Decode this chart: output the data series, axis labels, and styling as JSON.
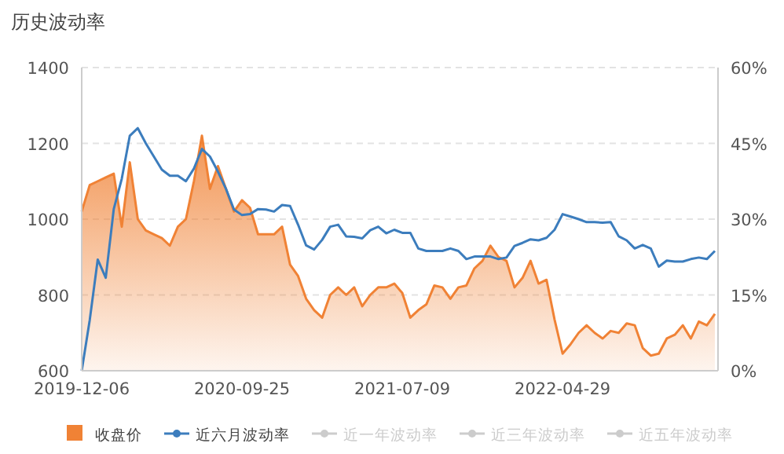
{
  "chart_data": {
    "type": "line",
    "title": "历史波动率",
    "categories": [
      "2019-12-06",
      null,
      null,
      null,
      null,
      null,
      null,
      null,
      null,
      null,
      null,
      null,
      null,
      null,
      null,
      null,
      null,
      null,
      null,
      null,
      "2020-09-25",
      null,
      null,
      null,
      null,
      null,
      null,
      null,
      null,
      null,
      null,
      null,
      null,
      null,
      null,
      null,
      null,
      null,
      null,
      null,
      "2021-07-09",
      null,
      null,
      null,
      null,
      null,
      null,
      null,
      null,
      null,
      null,
      null,
      null,
      null,
      null,
      null,
      null,
      null,
      null,
      null,
      "2022-04-29",
      null,
      null,
      null,
      null,
      null,
      null,
      null,
      null,
      null,
      null,
      null,
      null,
      null,
      null,
      null,
      null,
      null,
      null,
      null
    ],
    "series": [
      {
        "name": "收盘价",
        "type": "area",
        "color": "#f08235",
        "values": [
          1020,
          1090,
          1100,
          1110,
          1120,
          980,
          1150,
          1000,
          970,
          960,
          950,
          930,
          980,
          1000,
          1100,
          1220,
          1080,
          1140,
          1080,
          1020,
          1050,
          1030,
          960,
          960,
          960,
          980,
          880,
          850,
          790,
          760,
          740,
          800,
          820,
          800,
          820,
          770,
          800,
          820,
          820,
          830,
          805,
          740,
          760,
          775,
          825,
          820,
          790,
          820,
          825,
          870,
          890,
          930,
          900,
          890,
          820,
          845,
          890,
          830,
          840,
          735,
          645,
          670,
          700,
          720,
          700,
          685,
          705,
          700,
          725,
          720,
          660,
          640,
          645,
          685,
          695,
          720,
          685,
          730,
          720,
          750
        ]
      },
      {
        "name": "近六月波动率",
        "axis": "y2",
        "color": "#3c7dbd",
        "values": [
          0,
          10,
          22,
          18.4,
          32,
          38,
          46.5,
          48,
          45,
          42.4,
          39.8,
          38.6,
          38.6,
          37.5,
          40,
          43.9,
          42.4,
          39.4,
          36,
          31.9,
          30.8,
          31,
          32,
          31.9,
          31.5,
          32.8,
          32.6,
          28.9,
          24.8,
          24,
          25.9,
          28.5,
          28.9,
          26.6,
          26.5,
          26.2,
          27.8,
          28.5,
          27.2,
          27.9,
          27.3,
          27.3,
          24.2,
          23.7,
          23.7,
          23.7,
          24.2,
          23.7,
          22.1,
          22.6,
          22.6,
          22.6,
          22.1,
          22.4,
          24.7,
          25.3,
          26,
          25.8,
          26.3,
          27.9,
          31,
          30.5,
          30,
          29.4,
          29.4,
          29.3,
          29.4,
          26.6,
          25.8,
          24.2,
          24.9,
          24.2,
          20.6,
          21.8,
          21.6,
          21.6,
          22.1,
          22.4,
          22.1,
          23.7
        ]
      },
      {
        "name": "近一年波动率",
        "axis": "y2",
        "color": "#cccccc",
        "values": [
          null,
          null,
          null,
          null,
          null,
          null,
          null,
          null,
          null,
          null,
          null,
          null,
          null,
          null,
          null,
          null,
          null,
          null,
          null,
          null,
          null,
          null,
          null,
          null,
          null,
          null,
          null,
          null,
          null,
          null,
          null,
          null,
          null,
          null,
          null,
          null,
          null,
          null,
          null,
          null,
          null,
          null,
          null,
          null,
          null,
          null,
          null,
          null,
          null,
          null,
          null,
          null,
          null,
          null,
          null,
          null,
          null,
          null,
          null,
          null,
          null,
          null,
          null,
          null,
          null,
          null,
          null,
          null,
          null,
          null,
          null,
          null,
          null,
          null,
          null,
          null,
          null,
          null,
          null,
          null
        ]
      },
      {
        "name": "近三年波动率",
        "axis": "y2",
        "color": "#cccccc",
        "values": [
          null,
          null,
          null,
          null,
          null,
          null,
          null,
          null,
          null,
          null,
          null,
          null,
          null,
          null,
          null,
          null,
          null,
          null,
          null,
          null,
          null,
          null,
          null,
          null,
          null,
          null,
          null,
          null,
          null,
          null,
          null,
          null,
          null,
          null,
          null,
          null,
          null,
          null,
          null,
          null,
          null,
          null,
          null,
          null,
          null,
          null,
          null,
          null,
          null,
          null,
          null,
          null,
          null,
          null,
          null,
          null,
          null,
          null,
          null,
          null,
          null,
          null,
          null,
          null,
          null,
          null,
          null,
          null,
          null,
          null,
          null,
          null,
          null,
          null,
          null,
          null,
          null,
          null,
          null,
          null
        ]
      },
      {
        "name": "近五年波动率",
        "axis": "y2",
        "color": "#cccccc",
        "values": [
          null,
          null,
          null,
          null,
          null,
          null,
          null,
          null,
          null,
          null,
          null,
          null,
          null,
          null,
          null,
          null,
          null,
          null,
          null,
          null,
          null,
          null,
          null,
          null,
          null,
          null,
          null,
          null,
          null,
          null,
          null,
          null,
          null,
          null,
          null,
          null,
          null,
          null,
          null,
          null,
          null,
          null,
          null,
          null,
          null,
          null,
          null,
          null,
          null,
          null,
          null,
          null,
          null,
          null,
          null,
          null,
          null,
          null,
          null,
          null,
          null,
          null,
          null,
          null,
          null,
          null,
          null,
          null,
          null,
          null,
          null,
          null,
          null,
          null,
          null,
          null,
          null,
          null,
          null,
          null
        ]
      }
    ],
    "ylim": [
      600,
      1400
    ],
    "yticks": [
      600,
      800,
      1000,
      1200,
      1400
    ],
    "y2lim": [
      0,
      60
    ],
    "y2ticks": [
      {
        "value": 0,
        "label": "0%"
      },
      {
        "value": 15,
        "label": "15%"
      },
      {
        "value": 30,
        "label": "30%"
      },
      {
        "value": 45,
        "label": "45%"
      },
      {
        "value": 60,
        "label": "60%"
      }
    ],
    "grid": "y",
    "legend": "bottom",
    "marker": "none"
  }
}
